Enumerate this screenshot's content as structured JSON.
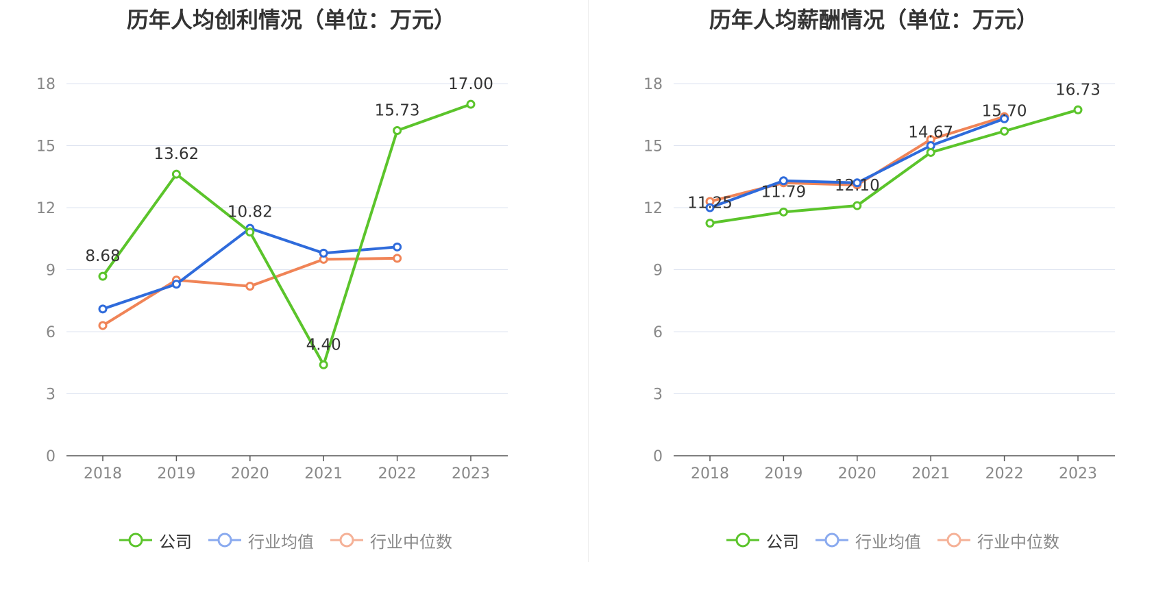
{
  "chart_data": [
    {
      "type": "line",
      "title": "历年人均创利情况（单位：万元）",
      "categories": [
        "2018",
        "2019",
        "2020",
        "2021",
        "2022",
        "2023"
      ],
      "ylim": [
        0,
        18
      ],
      "yticks": [
        "0",
        "3",
        "6",
        "9",
        "12",
        "15",
        "18"
      ],
      "grid": true,
      "legend": "bottom",
      "series": [
        {
          "name": "公司",
          "color": "#5BC42B",
          "values": [
            8.68,
            13.62,
            10.82,
            4.4,
            15.73,
            17.0
          ],
          "labels": [
            "8.68",
            "13.62",
            "10.82",
            "4.40",
            "15.73",
            "17.00"
          ]
        },
        {
          "name": "行业均值",
          "color": "#2F6BDB",
          "values": [
            7.1,
            8.3,
            11.0,
            9.8,
            10.1,
            null
          ]
        },
        {
          "name": "行业中位数",
          "color": "#F08457",
          "values": [
            6.3,
            8.5,
            8.2,
            9.5,
            9.55,
            null
          ]
        }
      ]
    },
    {
      "type": "line",
      "title": "历年人均薪酬情况（单位：万元）",
      "categories": [
        "2018",
        "2019",
        "2020",
        "2021",
        "2022",
        "2023"
      ],
      "ylim": [
        0,
        18
      ],
      "yticks": [
        "0",
        "3",
        "6",
        "9",
        "12",
        "15",
        "18"
      ],
      "grid": true,
      "legend": "bottom",
      "series": [
        {
          "name": "公司",
          "color": "#5BC42B",
          "values": [
            11.25,
            11.79,
            12.1,
            14.67,
            15.7,
            16.73
          ],
          "labels": [
            "11.25",
            "11.79",
            "12.10",
            "14.67",
            "15.70",
            "16.73"
          ]
        },
        {
          "name": "行业均值",
          "color": "#2F6BDB",
          "values": [
            12.0,
            13.3,
            13.2,
            15.0,
            16.3,
            null
          ]
        },
        {
          "name": "行业中位数",
          "color": "#F08457",
          "values": [
            12.3,
            13.2,
            13.1,
            15.3,
            16.4,
            null
          ]
        }
      ]
    }
  ],
  "legend_colors": {
    "company": "#5BC42B",
    "average": "#8AAAEF",
    "median": "#F5B197"
  }
}
